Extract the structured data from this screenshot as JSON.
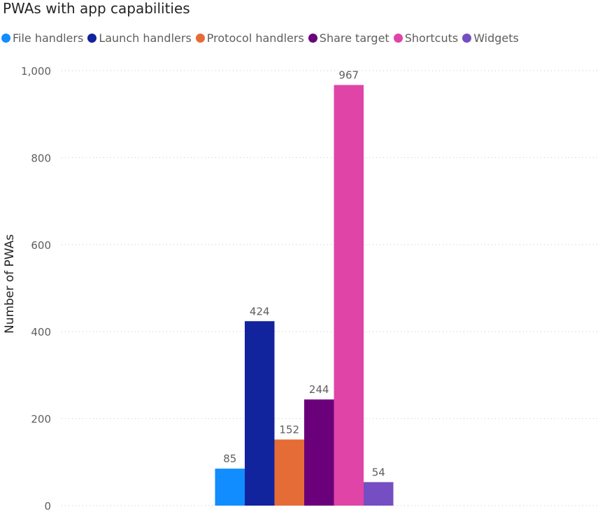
{
  "chart_data": {
    "type": "bar",
    "title": "PWAs with app capabilities",
    "ylabel": "Number of PWAs",
    "xlabel": "",
    "ylim": [
      0,
      1000
    ],
    "yticks": [
      "0",
      "200",
      "400",
      "600",
      "800",
      "1,000"
    ],
    "ytick_values": [
      0,
      200,
      400,
      600,
      800,
      1000
    ],
    "grid": true,
    "legend_position": "top-left",
    "series": [
      {
        "name": "File handlers",
        "value": 85,
        "label": "85",
        "color": "#118dff"
      },
      {
        "name": "Launch handlers",
        "value": 424,
        "label": "424",
        "color": "#12239e"
      },
      {
        "name": "Protocol handlers",
        "value": 152,
        "label": "152",
        "color": "#e66c37"
      },
      {
        "name": "Share target",
        "value": 244,
        "label": "244",
        "color": "#6b007b"
      },
      {
        "name": "Shortcuts",
        "value": 967,
        "label": "967",
        "color": "#e044a7"
      },
      {
        "name": "Widgets",
        "value": 54,
        "label": "54",
        "color": "#744ec2"
      }
    ]
  }
}
